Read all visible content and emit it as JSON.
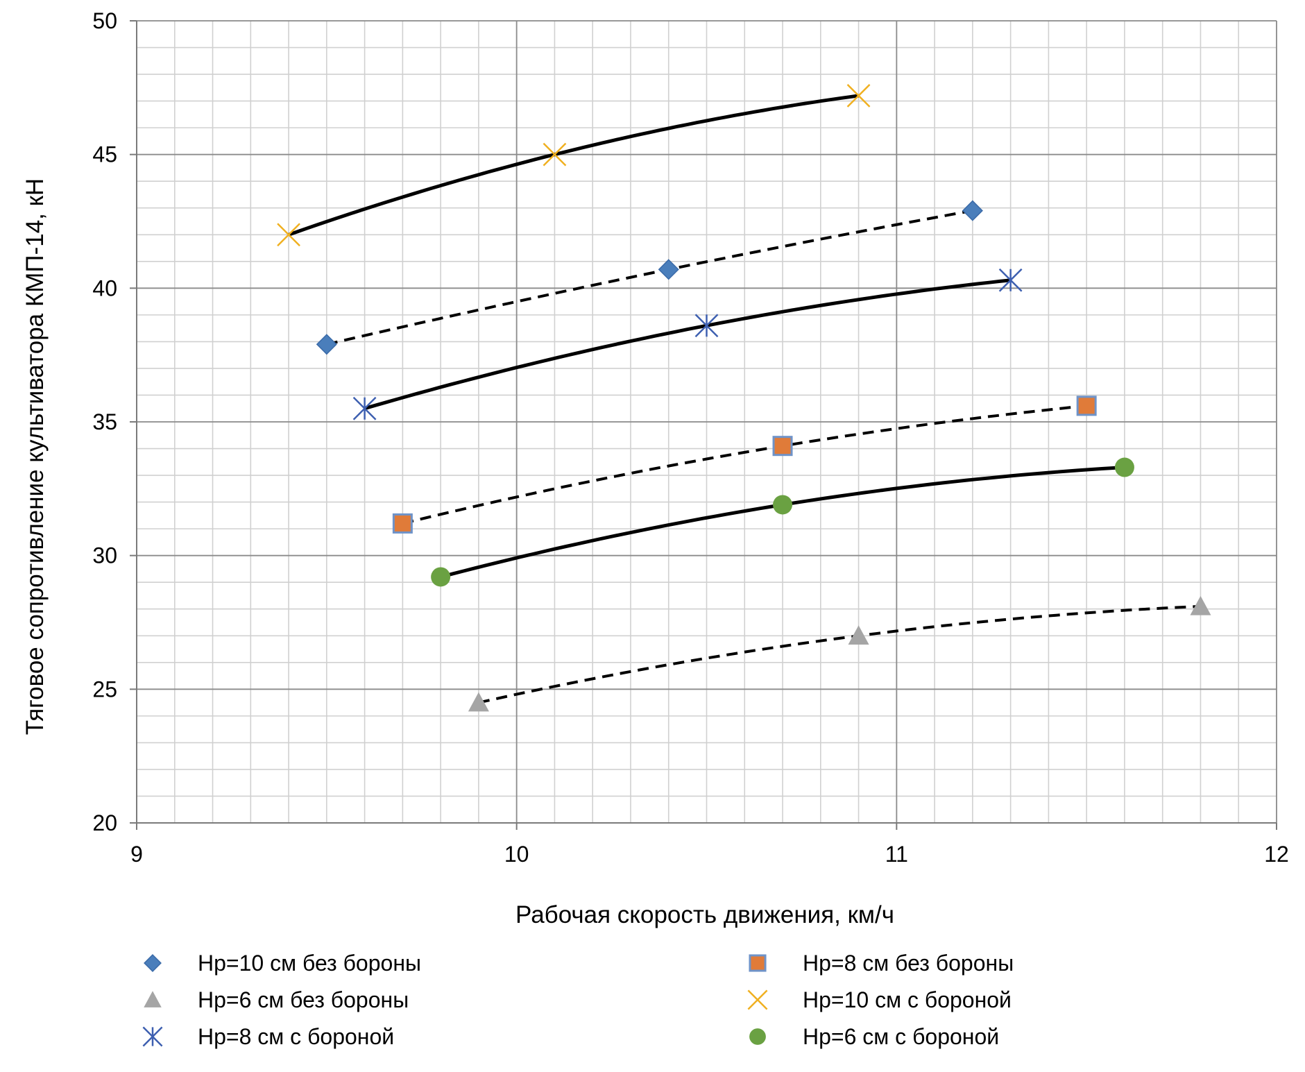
{
  "chart_data": {
    "type": "scatter",
    "title": "",
    "xlabel": "Рабочая скорость движения, км/ч",
    "ylabel": "Тяговое сопротивление культиватора КМП-14, кН",
    "xlim": [
      9,
      12
    ],
    "ylim": [
      20,
      50
    ],
    "x_ticks": [
      9,
      10,
      11,
      12
    ],
    "y_ticks": [
      20,
      25,
      30,
      35,
      40,
      45,
      50
    ],
    "x_minor_step": 0.1,
    "y_minor_step": 1,
    "grid": true,
    "legend_position": "bottom",
    "series": [
      {
        "name": "Hр=10 см без бороны",
        "marker": "diamond",
        "color": "#4a7ebb",
        "trend": "dashed",
        "points": [
          [
            9.5,
            37.9
          ],
          [
            10.4,
            40.7
          ],
          [
            11.2,
            42.9
          ]
        ]
      },
      {
        "name": "Hр=8 см без бороны",
        "marker": "square",
        "color": "#e07b39",
        "trend": "dashed",
        "points": [
          [
            9.7,
            31.2
          ],
          [
            10.7,
            34.1
          ],
          [
            11.5,
            35.6
          ]
        ]
      },
      {
        "name": "Hр=6 см без бороны",
        "marker": "triangle",
        "color": "#a5a5a5",
        "trend": "dashed",
        "points": [
          [
            9.9,
            24.5
          ],
          [
            10.9,
            27.0
          ],
          [
            11.8,
            28.1
          ]
        ]
      },
      {
        "name": "Hр=10 см с бороной",
        "marker": "x",
        "color": "#f0b020",
        "trend": "solid",
        "points": [
          [
            9.4,
            42.0
          ],
          [
            10.1,
            45.0
          ],
          [
            10.9,
            47.2
          ]
        ]
      },
      {
        "name": "Hр=8 см с бороной",
        "marker": "star",
        "color": "#3d5fb0",
        "trend": "solid",
        "points": [
          [
            9.6,
            35.5
          ],
          [
            10.5,
            38.6
          ],
          [
            11.3,
            40.3
          ]
        ]
      },
      {
        "name": "Hр=6 см с бороной",
        "marker": "circle",
        "color": "#6aa142",
        "trend": "solid",
        "points": [
          [
            9.8,
            29.2
          ],
          [
            10.7,
            31.9
          ],
          [
            11.6,
            33.3
          ]
        ]
      }
    ]
  }
}
